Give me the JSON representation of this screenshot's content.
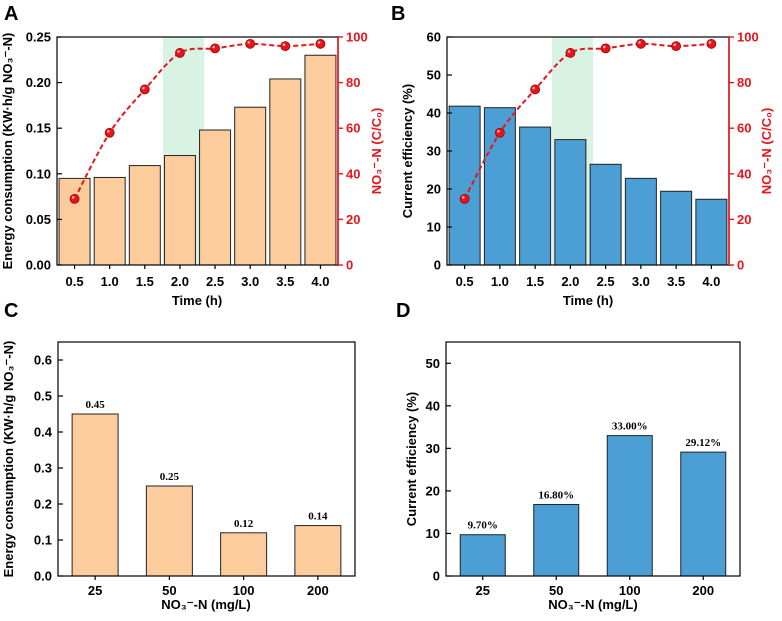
{
  "colors": {
    "orange_fill": "#fdcc9c",
    "blue_fill": "#4b9fd5",
    "bar_stroke": "#222222",
    "red": "#e8141b",
    "highlight": "#d8f2e4"
  },
  "chart_data": [
    {
      "panel": "A",
      "type": "bar",
      "categories": [
        "0.5",
        "1.0",
        "1.5",
        "2.0",
        "2.5",
        "3.0",
        "3.5",
        "4.0"
      ],
      "values": [
        0.095,
        0.096,
        0.109,
        0.12,
        0.148,
        0.173,
        0.204,
        0.23
      ],
      "xlabel": "Time (h)",
      "ylabel": "Energy consumption (KW·h/g NO₃⁻-N)",
      "ylim": [
        0,
        0.25
      ],
      "yticks": [
        "0.00",
        "0.05",
        "0.10",
        "0.15",
        "0.20",
        "0.25"
      ],
      "secondary": {
        "type": "line",
        "ylabel": "NO₃⁻-N (C/C₀)",
        "ylim": [
          0,
          100
        ],
        "yticks": [
          "0",
          "20",
          "40",
          "60",
          "80",
          "100"
        ],
        "values": [
          29,
          58,
          77,
          93,
          95,
          97,
          96,
          97
        ]
      },
      "highlight_category": "2.0"
    },
    {
      "panel": "B",
      "type": "bar",
      "categories": [
        "0.5",
        "1.0",
        "1.5",
        "2.0",
        "2.5",
        "3.0",
        "3.5",
        "4.0"
      ],
      "values": [
        41.8,
        41.4,
        36.3,
        33.0,
        26.5,
        22.8,
        19.4,
        17.3
      ],
      "xlabel": "Time (h)",
      "ylabel": "Current efficiency (%)",
      "ylim": [
        0,
        60
      ],
      "yticks": [
        "0",
        "10",
        "20",
        "30",
        "40",
        "50",
        "60"
      ],
      "secondary": {
        "type": "line",
        "ylabel": "NO₃⁻-N (C/C₀)",
        "ylim": [
          0,
          100
        ],
        "yticks": [
          "0",
          "20",
          "40",
          "60",
          "80",
          "100"
        ],
        "values": [
          29,
          58,
          77,
          93,
          95,
          97,
          96,
          97
        ]
      },
      "highlight_category": "2.0"
    },
    {
      "panel": "C",
      "type": "bar",
      "categories": [
        "25",
        "50",
        "100",
        "200"
      ],
      "values": [
        0.45,
        0.25,
        0.12,
        0.14
      ],
      "data_labels": [
        "0.45",
        "0.25",
        "0.12",
        "0.14"
      ],
      "xlabel": "NO₃⁻-N (mg/L)",
      "ylabel": "Energy consumption (KW·h/g NO₃⁻-N)",
      "ylim": [
        0,
        0.65
      ],
      "yticks": [
        "0.0",
        "0.1",
        "0.2",
        "0.3",
        "0.4",
        "0.5",
        "0.6"
      ]
    },
    {
      "panel": "D",
      "type": "bar",
      "categories": [
        "25",
        "50",
        "100",
        "200"
      ],
      "values": [
        9.7,
        16.8,
        33.0,
        29.12
      ],
      "data_labels": [
        "9.70%",
        "16.80%",
        "33.00%",
        "29.12%"
      ],
      "xlabel": "NO₃⁻-N (mg/L)",
      "ylabel": "Current efficiency (%)",
      "ylim": [
        0,
        55
      ],
      "yticks": [
        "0",
        "10",
        "20",
        "30",
        "40",
        "50"
      ]
    }
  ]
}
